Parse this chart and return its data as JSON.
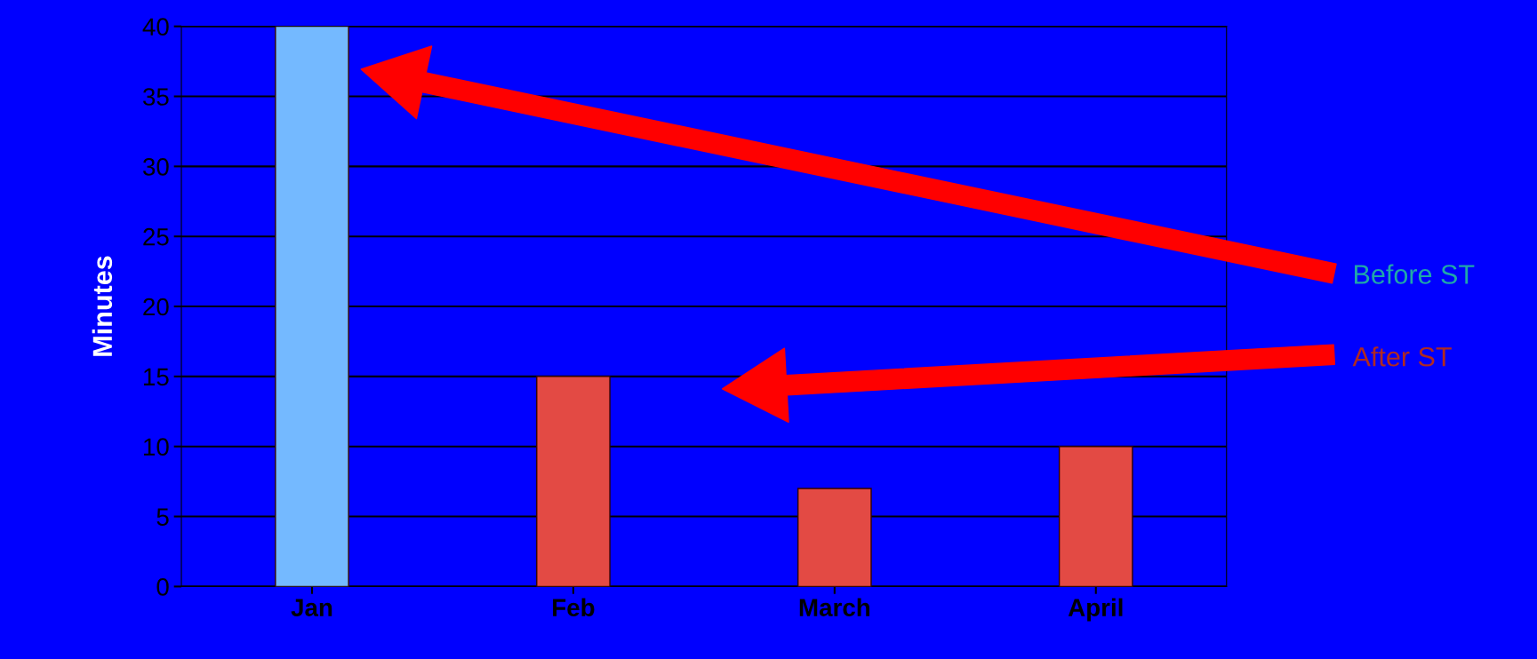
{
  "chart_data": {
    "type": "bar",
    "ylabel": "Minutes",
    "categories": [
      "Jan",
      "Feb",
      "March",
      "April"
    ],
    "values": [
      40,
      15,
      7,
      10
    ],
    "colors": [
      "#74b9ff",
      "#e34a44",
      "#e34a44",
      "#e34a44"
    ],
    "ylim": [
      0,
      40
    ],
    "yticks": [
      0,
      5,
      10,
      15,
      20,
      25,
      30,
      35,
      40
    ],
    "grid": "y",
    "annotations": [
      "Before ST",
      "After ST"
    ]
  }
}
